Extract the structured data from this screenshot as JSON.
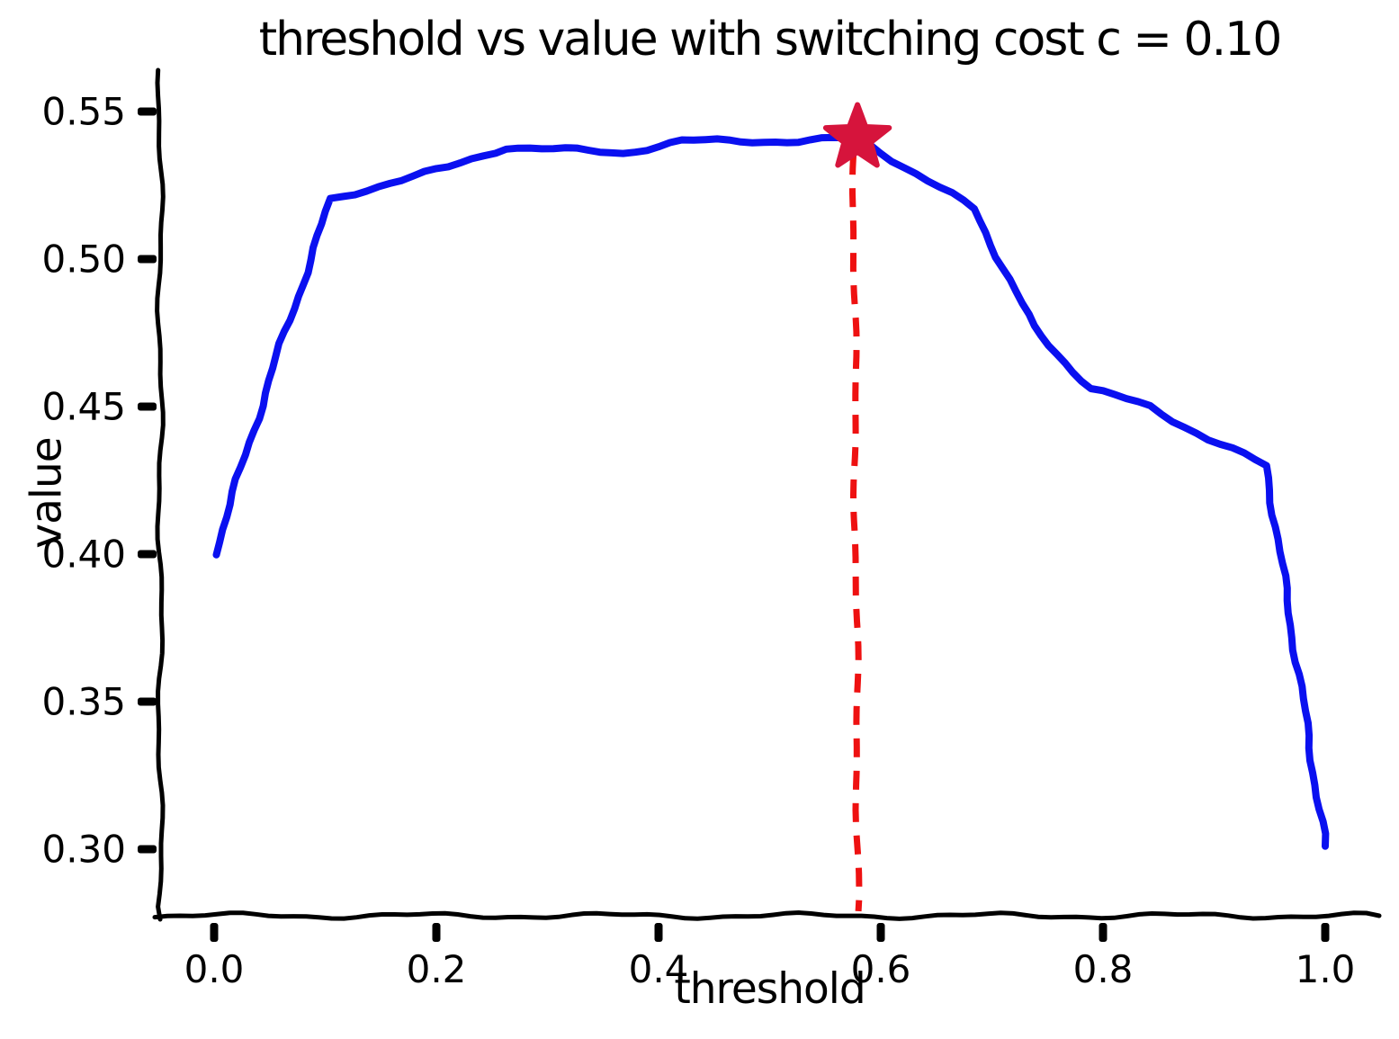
{
  "figure": {
    "background": "#ffffff",
    "style": "xkcd-hand-drawn"
  },
  "chart_data": {
    "type": "line",
    "title": "threshold vs value with switching cost c = 0.10",
    "xlabel": "threshold",
    "ylabel": "value",
    "x_ticks": [
      0.0,
      0.2,
      0.4,
      0.6,
      0.8,
      1.0
    ],
    "x_tick_labels": [
      "0.0",
      "0.2",
      "0.4",
      "0.6",
      "0.8",
      "1.0"
    ],
    "y_ticks": [
      0.55,
      0.5,
      0.45,
      0.4,
      0.35,
      0.3
    ],
    "y_tick_labels": [
      "0.55",
      "0.50",
      "0.45",
      "0.40",
      "0.35",
      "0.30"
    ],
    "xlim": [
      -0.05,
      1.05
    ],
    "ylim": [
      0.277,
      0.563
    ],
    "grid": false,
    "legend": null,
    "axis_color": "#000000",
    "series": [
      {
        "name": "value",
        "color": "#0a10f0",
        "line_width": 8,
        "points": [
          [
            0.0,
            0.4
          ],
          [
            0.053,
            0.463
          ],
          [
            0.105,
            0.52
          ],
          [
            0.158,
            0.526
          ],
          [
            0.211,
            0.531
          ],
          [
            0.263,
            0.538
          ],
          [
            0.316,
            0.537
          ],
          [
            0.368,
            0.536
          ],
          [
            0.421,
            0.54
          ],
          [
            0.474,
            0.54
          ],
          [
            0.526,
            0.54
          ],
          [
            0.579,
            0.541
          ],
          [
            0.632,
            0.529
          ],
          [
            0.684,
            0.517
          ],
          [
            0.737,
            0.477
          ],
          [
            0.789,
            0.456
          ],
          [
            0.842,
            0.45
          ],
          [
            0.895,
            0.439
          ],
          [
            0.947,
            0.43
          ],
          [
            1.0,
            0.301
          ]
        ]
      }
    ],
    "annotations": {
      "best_point": {
        "threshold": 0.579,
        "value": 0.541,
        "marker": "star",
        "color": "#d6143c"
      },
      "vline": {
        "x": 0.579,
        "style": "dashed",
        "color": "#ee1111",
        "from_value": 0.279,
        "to_value": 0.535
      }
    }
  }
}
